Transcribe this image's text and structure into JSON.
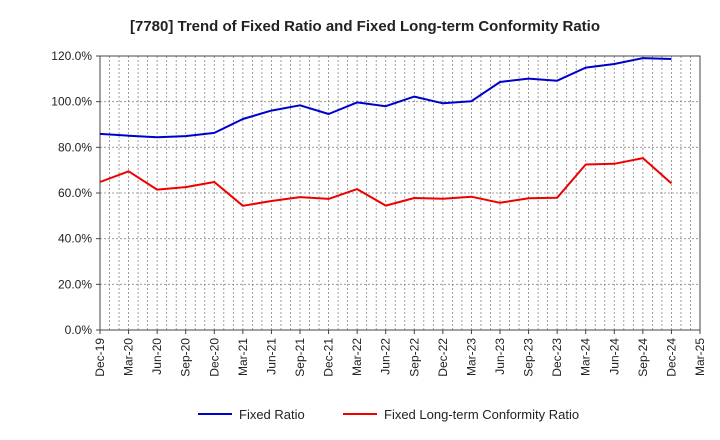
{
  "chart_data": {
    "type": "line",
    "title": "[7780]  Trend of Fixed Ratio and Fixed Long-term Conformity Ratio",
    "xlabel": "",
    "ylabel": "",
    "ylim": [
      0,
      120
    ],
    "yticks": [
      "0.0%",
      "20.0%",
      "40.0%",
      "60.0%",
      "80.0%",
      "100.0%",
      "120.0%"
    ],
    "ytick_values": [
      0,
      20,
      40,
      60,
      80,
      100,
      120
    ],
    "xticks": [
      "Dec-19",
      "Mar-20",
      "Jun-20",
      "Sep-20",
      "Dec-20",
      "Mar-21",
      "Jun-21",
      "Sep-21",
      "Dec-21",
      "Mar-22",
      "Jun-22",
      "Sep-22",
      "Dec-22",
      "Mar-23",
      "Jun-23",
      "Sep-23",
      "Dec-23",
      "Mar-24",
      "Jun-24",
      "Sep-24",
      "Dec-24",
      "Mar-25"
    ],
    "x": [
      "Dec-19",
      "Mar-20",
      "Jun-20",
      "Sep-20",
      "Dec-20",
      "Mar-21",
      "Jun-21",
      "Sep-21",
      "Dec-21",
      "Mar-22",
      "Jun-22",
      "Sep-22",
      "Dec-22",
      "Mar-23",
      "Jun-23",
      "Sep-23",
      "Dec-23",
      "Mar-24",
      "Jun-24",
      "Sep-24",
      "Dec-24"
    ],
    "grid": true,
    "legend_position": "bottom-center",
    "series": [
      {
        "name": "Fixed Ratio",
        "color": "#0000cc",
        "values": [
          85.9,
          85.1,
          84.4,
          84.9,
          86.3,
          92.4,
          96.1,
          98.4,
          94.6,
          99.7,
          98.0,
          102.2,
          99.3,
          100.2,
          108.6,
          110.1,
          109.2,
          114.9,
          116.5,
          119.1,
          118.7
        ]
      },
      {
        "name": "Fixed Long-term Conformity Ratio",
        "color": "#ee0000",
        "values": [
          64.8,
          69.5,
          61.5,
          62.6,
          64.8,
          54.4,
          56.5,
          58.2,
          57.4,
          61.7,
          54.5,
          57.8,
          57.5,
          58.4,
          55.7,
          57.7,
          57.9,
          72.5,
          72.8,
          75.3,
          64.2
        ]
      }
    ]
  }
}
